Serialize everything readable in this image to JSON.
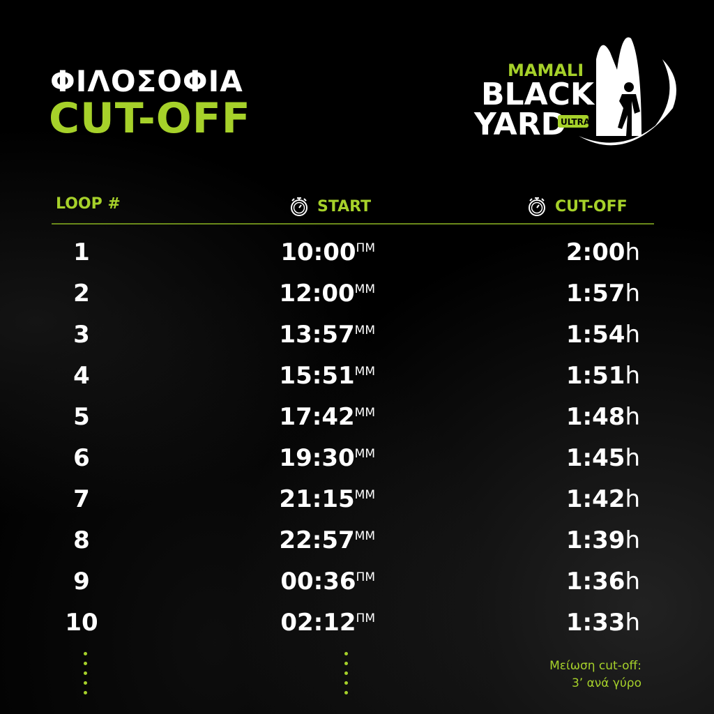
{
  "title": {
    "line1": "ΦΙΛΟΣΟΦΙΑ",
    "line2": "CUT-OFF"
  },
  "logo": {
    "text_top": "MAMALI",
    "text_mid": "BLACK",
    "text_bottom": "YARD",
    "badge": "ULTRA"
  },
  "colors": {
    "accent": "#a6d12a",
    "background": "#000000",
    "text": "#ffffff"
  },
  "table": {
    "headers": {
      "loop": "LOOP #",
      "start": "START",
      "cutoff": "CUT-OFF",
      "icon": "stopwatch-icon"
    },
    "rows": [
      {
        "loop": "1",
        "start": "10:00",
        "period": "ΠΜ",
        "cutoff": "2:00",
        "unit": "h"
      },
      {
        "loop": "2",
        "start": "12:00",
        "period": "ΜΜ",
        "cutoff": "1:57",
        "unit": "h"
      },
      {
        "loop": "3",
        "start": "13:57",
        "period": "ΜΜ",
        "cutoff": "1:54",
        "unit": "h"
      },
      {
        "loop": "4",
        "start": "15:51",
        "period": "ΜΜ",
        "cutoff": "1:51",
        "unit": "h"
      },
      {
        "loop": "5",
        "start": "17:42",
        "period": "ΜΜ",
        "cutoff": "1:48",
        "unit": "h"
      },
      {
        "loop": "6",
        "start": "19:30",
        "period": "ΜΜ",
        "cutoff": "1:45",
        "unit": "h"
      },
      {
        "loop": "7",
        "start": "21:15",
        "period": "ΜΜ",
        "cutoff": "1:42",
        "unit": "h"
      },
      {
        "loop": "8",
        "start": "22:57",
        "period": "ΜΜ",
        "cutoff": "1:39",
        "unit": "h"
      },
      {
        "loop": "9",
        "start": "00:36",
        "period": "ΠΜ",
        "cutoff": "1:36",
        "unit": "h"
      },
      {
        "loop": "10",
        "start": "02:12",
        "period": "ΠΜ",
        "cutoff": "1:33",
        "unit": "h"
      }
    ]
  },
  "note": {
    "line1": "Μείωση cut-off:",
    "line2": "3’ ανά γύρο"
  }
}
